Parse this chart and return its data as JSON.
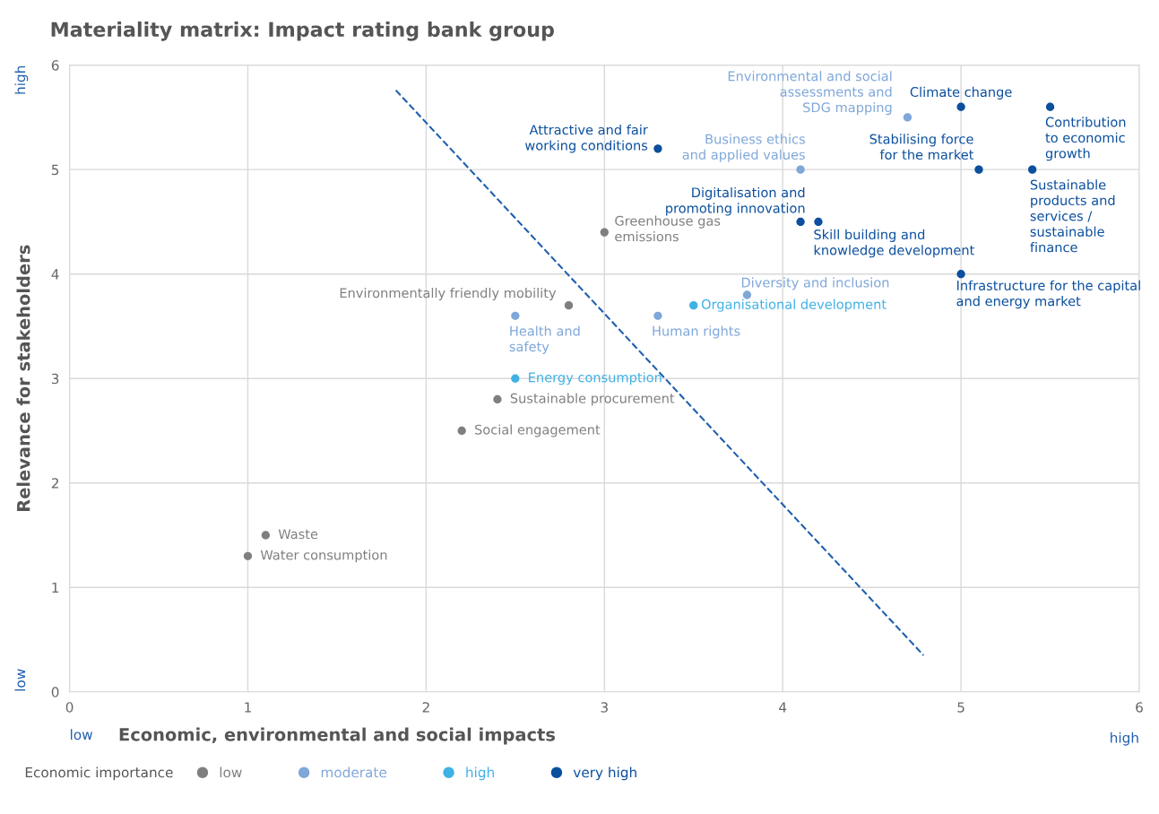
{
  "chart_data": {
    "type": "scatter",
    "title": "Materiality matrix: Impact rating bank group",
    "xlabel": "Economic, environmental and social impacts",
    "ylabel": "Relevance for stakeholders",
    "legend_title": "Economic importance",
    "legend": "bottom",
    "grid": true,
    "marker": "circle",
    "xlim": [
      0,
      6
    ],
    "ylim": [
      0,
      6
    ],
    "xticks": [
      0,
      1,
      2,
      3,
      4,
      5,
      6
    ],
    "yticks": [
      0,
      1,
      2,
      3,
      4,
      5,
      6
    ],
    "series": [
      {
        "name": "low",
        "color": "#7f7f7f",
        "x": [
          1.0,
          1.1,
          2.2,
          2.4,
          2.8,
          3.0
        ],
        "values": [
          1.3,
          1.5,
          2.5,
          2.8,
          3.7,
          4.4
        ]
      },
      {
        "name": "moderate",
        "color": "#7fa7d9",
        "x": [
          2.5,
          3.3,
          3.8,
          4.1,
          4.7
        ],
        "values": [
          3.6,
          3.6,
          3.8,
          5.0,
          5.5
        ]
      },
      {
        "name": "high",
        "color": "#3fb1e5",
        "x": [
          2.5,
          3.5
        ],
        "values": [
          3.0,
          3.7
        ]
      },
      {
        "name": "very high",
        "color": "#0b4f9e",
        "x": [
          3.3,
          4.1,
          4.2,
          5.0,
          5.1,
          5.0,
          5.4,
          5.5
        ],
        "values": [
          5.2,
          4.5,
          4.5,
          5.6,
          5.0,
          4.0,
          5.0,
          5.6
        ]
      },
      {
        "type": "line",
        "color": "#1f5fae",
        "line_style": "dashed",
        "marker": "none",
        "x": [
          1.83,
          4.79
        ],
        "values": [
          5.76,
          0.35
        ]
      }
    ],
    "annotations": [
      {
        "text": "Water consumption",
        "x": 1.0,
        "y": 1.3
      },
      {
        "text": "Waste",
        "x": 1.1,
        "y": 1.5
      },
      {
        "text": "Social engagement",
        "x": 2.2,
        "y": 2.5
      },
      {
        "text": "Sustainable procurement",
        "x": 2.4,
        "y": 2.8
      },
      {
        "text": "Environmentally friendly mobility",
        "x": 2.8,
        "y": 3.7
      },
      {
        "text": "Greenhouse gas\nemissions",
        "x": 3.0,
        "y": 4.4
      },
      {
        "text": "Health and\nsafety",
        "x": 2.5,
        "y": 3.6
      },
      {
        "text": "Human rights",
        "x": 3.3,
        "y": 3.6
      },
      {
        "text": "Diversity and inclusion",
        "x": 3.8,
        "y": 3.8
      },
      {
        "text": "Business ethics\nand applied values",
        "x": 4.1,
        "y": 5.0
      },
      {
        "text": "Environmental and social\nassessments and\nSDG mapping",
        "x": 4.7,
        "y": 5.5
      },
      {
        "text": "Energy consumption",
        "x": 2.5,
        "y": 3.0
      },
      {
        "text": "Organisational development",
        "x": 3.5,
        "y": 3.7
      },
      {
        "text": "Attractive and fair\nworking conditions",
        "x": 3.3,
        "y": 5.2
      },
      {
        "text": "Digitalisation and\npromoting innovation",
        "x": 4.1,
        "y": 4.5
      },
      {
        "text": "Skill building and\nknowledge development",
        "x": 4.2,
        "y": 4.5
      },
      {
        "text": "Climate change",
        "x": 5.0,
        "y": 5.6
      },
      {
        "text": "Stabilising force\nfor the market",
        "x": 5.1,
        "y": 5.0
      },
      {
        "text": "Infrastructure for the capital\nand energy market",
        "x": 5.0,
        "y": 4.0
      },
      {
        "text": "Sustainable\nproducts and\nservices /\nsustainable\nfinance",
        "x": 5.4,
        "y": 5.0
      },
      {
        "text": "Contribution\nto economic\ngrowth",
        "x": 5.5,
        "y": 5.6
      },
      "high",
      "low",
      "low",
      "high"
    ]
  }
}
